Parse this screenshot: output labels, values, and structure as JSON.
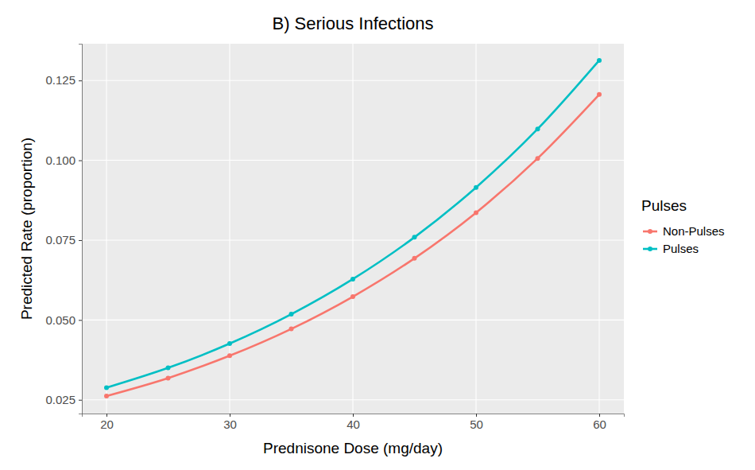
{
  "chart_data": {
    "type": "line",
    "title": "B) Serious Infections",
    "x_label": "Prednisone Dose (mg/day)",
    "y_label": "Predicted Rate (proportion)",
    "x": [
      20,
      25,
      30,
      35,
      40,
      45,
      50,
      55,
      60
    ],
    "series": [
      {
        "name": "Non-Pulses",
        "color": "#F8766D",
        "marker": "circle",
        "values": [
          0.0262,
          0.0318,
          0.0388,
          0.0472,
          0.0573,
          0.0693,
          0.0836,
          0.1006,
          0.1206
        ]
      },
      {
        "name": "Pulses",
        "color": "#00BFC4",
        "marker": "circle",
        "values": [
          0.0288,
          0.035,
          0.0426,
          0.0518,
          0.0628,
          0.0759,
          0.0915,
          0.1098,
          0.1313
        ]
      }
    ],
    "xlim": [
      18,
      62
    ],
    "xticks": [
      20,
      30,
      40,
      50,
      60
    ],
    "ylim": [
      0.0207,
      0.1365
    ],
    "yticks": [
      0.025,
      {
        "value": 0.05,
        "label": "0.050"
      },
      0.075,
      {
        "value": 0.1,
        "label": "0.100"
      },
      0.125
    ],
    "grid": true,
    "legend": "right",
    "legend_title": "Pulses"
  }
}
